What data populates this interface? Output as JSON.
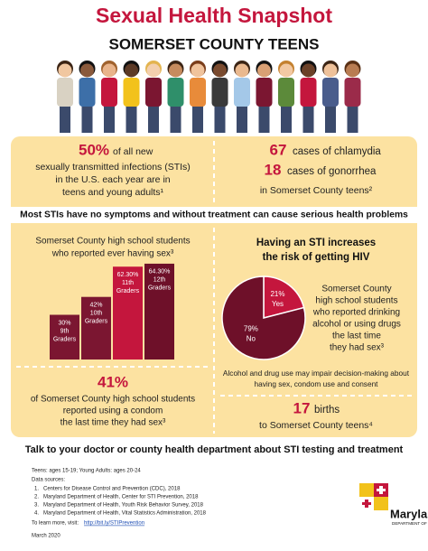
{
  "header": {
    "title": "Sexual Health Snapshot",
    "subtitle": "SOMERSET COUNTY TEENS"
  },
  "stat_sti": {
    "value": "50%",
    "lines": [
      "of all new",
      "sexually transmitted infections (STIs)",
      "in the U.S. each year are in",
      "teens and young adults¹"
    ]
  },
  "stat_cases": {
    "chlamydia_value": "67",
    "chlamydia_text": "cases of chlamydia",
    "gonorrhea_value": "18",
    "gonorrhea_text": "cases of gonorrhea",
    "note": "in Somerset County teens²"
  },
  "banner": "Most STIs have no symptoms and without treatment can cause serious health problems",
  "ever_sex_chart": {
    "type": "bar",
    "title": [
      "Somerset County high school students",
      "who reported ever having sex³"
    ],
    "categories": [
      [
        "9th",
        "Graders"
      ],
      [
        "10th",
        "Graders"
      ],
      [
        "11th",
        "Graders"
      ],
      [
        "12th",
        "Graders"
      ]
    ],
    "values": [
      30,
      42,
      62.3,
      64.3
    ],
    "value_labels": [
      "30%",
      "42%",
      "62.30%",
      "64.30%"
    ],
    "colors": [
      "#7b1631",
      "#7b1631",
      "#c4163d",
      "#6e1029"
    ]
  },
  "hiv_chart": {
    "type": "pie",
    "title": [
      "Having an STI increases",
      "the risk of getting HIV"
    ],
    "labels": [
      "Yes",
      "No"
    ],
    "values": [
      21,
      79
    ],
    "value_labels": [
      "21%",
      "79%"
    ],
    "colors": [
      "#c4163d",
      "#6e1029"
    ],
    "description": [
      "Somerset County",
      "high school students",
      "who reported drinking",
      "alcohol or using drugs",
      "the last time",
      "they had sex³"
    ],
    "note": [
      "Alcohol and drug use may impair decision-making about",
      "having sex, condom use and consent"
    ]
  },
  "stat_condom": {
    "value": "41%",
    "lines": [
      "of Somerset County high school students",
      "reported using a condom",
      "the last time they had sex³"
    ]
  },
  "stat_births": {
    "value": "17",
    "text": "births",
    "note": "to Somerset County teens⁴"
  },
  "call_to_action": "Talk to your doctor or county health department about STI testing and treatment",
  "footer": {
    "definition": "Teens: ages 15-19; Young Adults: ages 20-24",
    "sources_title": "Data sources:",
    "sources": [
      [
        "1.",
        "Centers for Disease Control and Prevention (CDC), 2018"
      ],
      [
        "2.",
        "Maryland Department of Health, Center for STI Prevention, 2018"
      ],
      [
        "3.",
        "Maryland Department of Health, Youth Risk Behavior Survey, 2018"
      ],
      [
        "4.",
        "Maryland Department of Health, Vital Statistics Administration, 2018"
      ]
    ],
    "learn_more": "To learn more, visit:",
    "link": "http://bit.ly/STIPrevention",
    "date": "March 2020"
  },
  "logo": {
    "name": "Maryland",
    "department": "DEPARTMENT OF HEALTH"
  }
}
